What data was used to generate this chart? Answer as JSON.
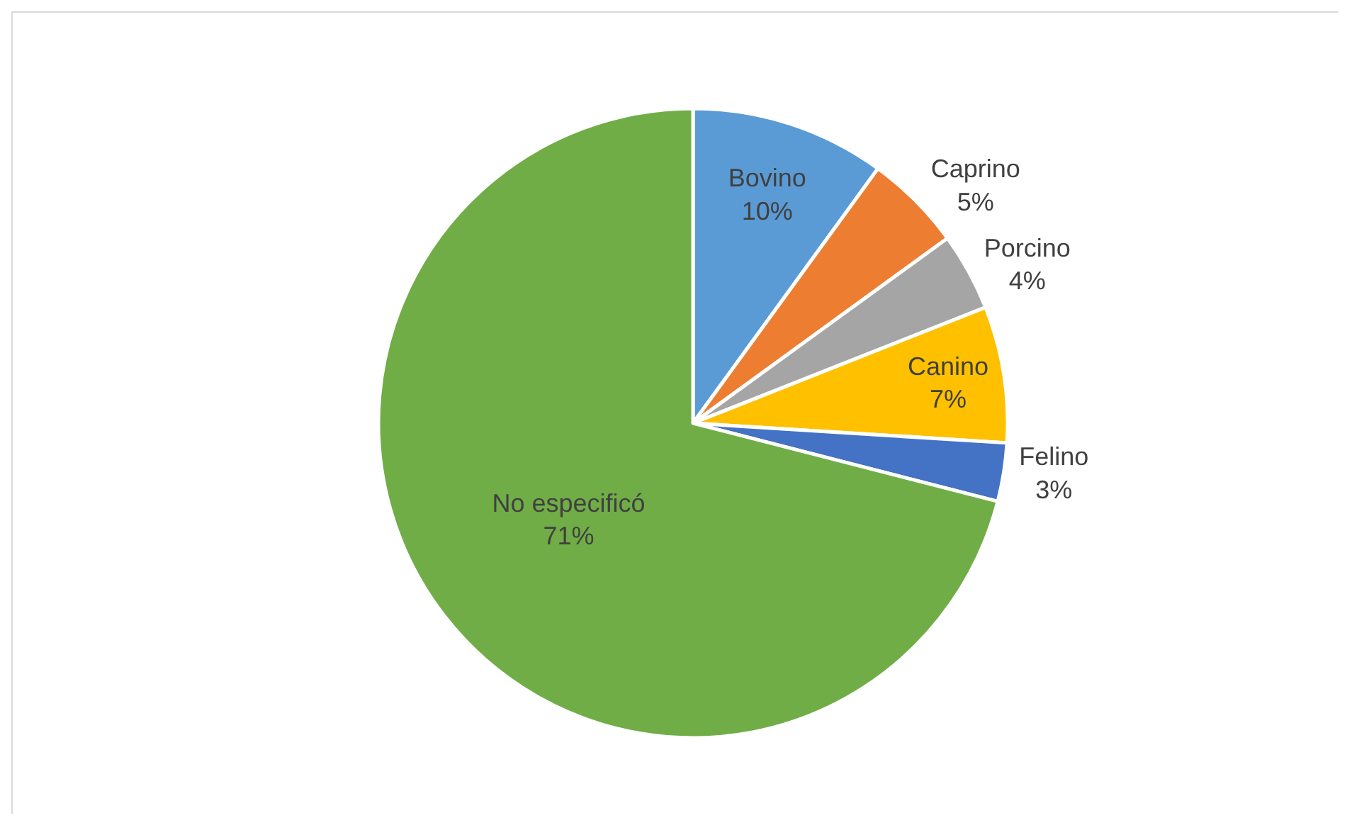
{
  "chart_data": {
    "type": "pie",
    "categories": [
      "Bovino",
      "Caprino",
      "Porcino",
      "Canino",
      "Felino",
      "No especificó"
    ],
    "values": [
      10,
      5,
      4,
      7,
      3,
      71
    ],
    "value_labels": [
      "10%",
      "5%",
      "4%",
      "7%",
      "3%",
      "71%"
    ],
    "colors": [
      "#5b9bd5",
      "#ed7d31",
      "#a5a5a5",
      "#ffc000",
      "#4472c4",
      "#70ad47"
    ],
    "legend": false
  }
}
